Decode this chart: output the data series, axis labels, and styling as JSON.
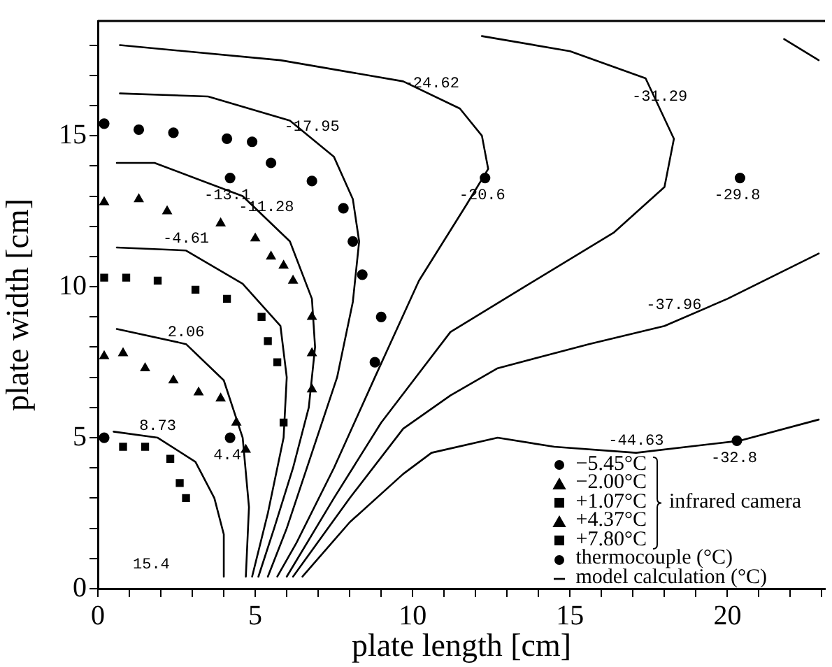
{
  "chart_data": {
    "type": "scatter",
    "xlabel": "plate length [cm]",
    "ylabel": "plate width [cm]",
    "xlim": [
      0,
      23.1
    ],
    "ylim": [
      0,
      18.8
    ],
    "xticks": [
      0,
      {
        "value": 1,
        "label": null
      },
      {
        "value": 2,
        "label": null
      },
      {
        "value": 3,
        "label": null
      },
      {
        "value": 4,
        "label": null
      },
      5,
      {
        "value": 6,
        "label": null
      },
      {
        "value": 7,
        "label": null
      },
      {
        "value": 8,
        "label": null
      },
      {
        "value": 9,
        "label": null
      },
      10,
      {
        "value": 11,
        "label": null
      },
      {
        "value": 12,
        "label": null
      },
      {
        "value": 13,
        "label": null
      },
      {
        "value": 14,
        "label": null
      },
      15,
      {
        "value": 16,
        "label": null
      },
      {
        "value": 17,
        "label": null
      },
      {
        "value": 18,
        "label": null
      },
      {
        "value": 19,
        "label": null
      },
      20,
      {
        "value": 21,
        "label": null
      },
      {
        "value": 22,
        "label": null
      },
      {
        "value": 23,
        "label": null
      }
    ],
    "yticks": [
      0,
      {
        "value": 1,
        "label": null
      },
      {
        "value": 2,
        "label": null
      },
      {
        "value": 3,
        "label": null
      },
      {
        "value": 4,
        "label": null
      },
      5,
      {
        "value": 6,
        "label": null
      },
      {
        "value": 7,
        "label": null
      },
      {
        "value": 8,
        "label": null
      },
      {
        "value": 9,
        "label": null
      },
      10,
      {
        "value": 11,
        "label": null
      },
      {
        "value": 12,
        "label": null
      },
      {
        "value": 13,
        "label": null
      },
      {
        "value": 14,
        "label": null
      },
      15,
      {
        "value": 16,
        "label": null
      },
      {
        "value": 17,
        "label": null
      },
      {
        "value": 18,
        "label": null
      }
    ],
    "grid": false,
    "legend": "bottom right",
    "series": [
      {
        "name": "−5.45°C",
        "marker": "circle",
        "color": "#000000",
        "x": [
          0.2,
          1.3,
          2.4,
          4.1,
          4.9,
          5.5,
          6.8,
          7.8,
          8.1,
          8.4,
          9.0,
          8.8
        ],
        "values": [
          15.4,
          15.2,
          15.1,
          14.9,
          14.8,
          14.1,
          13.5,
          12.6,
          11.5,
          10.4,
          9.0,
          7.5
        ]
      },
      {
        "name": "−2.00°C",
        "marker": "triangle",
        "color": "#000000",
        "x": [
          0.2,
          1.3,
          2.2,
          3.9,
          5.0,
          5.5,
          5.9,
          6.2,
          6.8,
          6.8,
          6.8
        ],
        "values": [
          12.8,
          12.9,
          12.5,
          12.1,
          11.6,
          11.0,
          10.7,
          10.2,
          9.0,
          7.8,
          6.6
        ]
      },
      {
        "name": "+1.07°C",
        "marker": "square",
        "color": "#000000",
        "x": [
          0.2,
          0.9,
          1.9,
          3.1,
          4.1,
          5.2,
          5.4,
          5.7,
          5.9
        ],
        "values": [
          10.3,
          10.3,
          10.2,
          9.9,
          9.6,
          9.0,
          8.2,
          7.5,
          5.5
        ]
      },
      {
        "name": "+4.37°C",
        "marker": "triangle",
        "color": "#000000",
        "x": [
          0.2,
          0.8,
          1.5,
          2.4,
          3.2,
          3.9,
          4.4,
          4.7
        ],
        "values": [
          7.7,
          7.8,
          7.3,
          6.9,
          6.5,
          6.3,
          5.5,
          4.6
        ]
      },
      {
        "name": "+7.80°C",
        "marker": "square",
        "color": "#000000",
        "x": [
          0.8,
          1.5,
          2.3,
          2.6,
          2.8
        ],
        "values": [
          4.7,
          4.7,
          4.3,
          3.5,
          3.0
        ]
      },
      {
        "name": "thermocouple (°C)",
        "marker": "circle",
        "color": "#000000",
        "x": [
          0.2,
          4.2,
          4.2,
          12.3,
          20.4,
          20.3
        ],
        "values": [
          5.0,
          5.0,
          13.6,
          13.6,
          13.6,
          4.9
        ]
      },
      {
        "name": "model calculation (°C)",
        "type": "line",
        "marker": "none",
        "color": "#000000",
        "x": [
          0.5,
          1.9,
          3.1,
          3.7,
          4.0,
          4.0
        ],
        "values": [
          5.2,
          5.0,
          4.2,
          3.0,
          1.8,
          0.4
        ]
      },
      {
        "type": "line",
        "marker": "none",
        "color": "#000000",
        "x": [
          0.6,
          2.8,
          4.0,
          4.6,
          4.8,
          4.7
        ],
        "values": [
          8.6,
          8.1,
          6.9,
          5.0,
          2.7,
          0.4
        ]
      },
      {
        "type": "line",
        "marker": "none",
        "color": "#000000",
        "x": [
          0.6,
          2.8,
          4.6,
          5.8,
          6.0,
          5.9,
          5.4,
          4.9
        ],
        "values": [
          11.3,
          11.2,
          10.1,
          8.7,
          7.0,
          5.0,
          2.5,
          0.4
        ]
      },
      {
        "type": "line",
        "marker": "none",
        "color": "#000000",
        "x": [
          0.6,
          1.8,
          4.6,
          6.1,
          6.8,
          6.9,
          6.7,
          6.2,
          5.6,
          5.1
        ],
        "values": [
          14.1,
          14.1,
          13.0,
          11.5,
          9.6,
          8.0,
          6.0,
          4.0,
          2.0,
          0.4
        ]
      },
      {
        "type": "line",
        "marker": "none",
        "color": "#000000",
        "x": [
          0.7,
          3.5,
          6.1,
          7.5,
          8.1,
          8.3,
          8.1,
          7.6,
          6.8,
          6.0,
          5.4
        ],
        "values": [
          16.4,
          16.3,
          15.5,
          14.3,
          12.9,
          11.5,
          9.5,
          7.0,
          4.5,
          2.0,
          0.4
        ]
      },
      {
        "type": "line",
        "marker": "none",
        "color": "#000000",
        "x": [
          0.7,
          5.8,
          9.7,
          11.5,
          12.2,
          12.4,
          11.7,
          10.2,
          8.8,
          7.5,
          6.3,
          5.7
        ],
        "values": [
          18.0,
          17.5,
          16.8,
          15.9,
          15.0,
          13.9,
          12.7,
          10.2,
          7.0,
          4.0,
          1.5,
          0.4
        ]
      },
      {
        "type": "line",
        "marker": "none",
        "color": "#000000",
        "x": [
          12.2,
          15.0,
          17.4,
          18.3,
          18.0,
          16.4,
          13.4,
          11.2,
          9.0,
          7.5,
          6.0
        ],
        "values": [
          18.3,
          17.8,
          16.9,
          14.9,
          13.3,
          11.8,
          9.9,
          8.5,
          5.5,
          3.0,
          0.4
        ]
      },
      {
        "type": "line",
        "marker": "none",
        "color": "#000000",
        "x": [
          22.9,
          20.0,
          18.0,
          15.6,
          12.7,
          11.2,
          9.7,
          8.0,
          6.2
        ],
        "values": [
          11.1,
          9.6,
          8.7,
          8.1,
          7.3,
          6.4,
          5.3,
          3.0,
          0.4
        ]
      },
      {
        "type": "line",
        "marker": "none",
        "color": "#000000",
        "x": [
          22.9,
          20.4,
          17.1,
          14.5,
          12.7,
          10.6,
          9.7,
          8.0,
          6.5
        ],
        "values": [
          5.6,
          4.9,
          4.5,
          4.7,
          5.0,
          4.5,
          3.8,
          2.2,
          0.4
        ]
      },
      {
        "type": "line",
        "marker": "none",
        "color": "#000000",
        "x": [
          21.8,
          22.9
        ],
        "values": [
          18.2,
          17.5
        ]
      }
    ],
    "annotations": [
      "infrared camera",
      {
        "text": "8.73",
        "x": 1.9,
        "y": 5.0
      },
      {
        "text": "2.06",
        "x": 2.8,
        "y": 8.1
      },
      {
        "text": "-4.61",
        "x": 2.8,
        "y": 11.2
      },
      {
        "text": "-11.28",
        "x": 5.35,
        "y": 12.25
      },
      {
        "text": "-17.95",
        "x": 6.8,
        "y": 14.9
      },
      {
        "text": "-24.62",
        "x": 10.6,
        "y": 16.35
      },
      {
        "text": "-31.29",
        "x": 17.85,
        "y": 15.9
      },
      {
        "text": "-37.96",
        "x": 18.3,
        "y": 9.0
      },
      {
        "text": "-44.63",
        "x": 17.1,
        "y": 4.5
      },
      {
        "text": "-13.1",
        "x": 4.2,
        "y": 13.6
      },
      {
        "text": "-20.6",
        "x": 12.3,
        "y": 13.6
      },
      {
        "text": "-29.8",
        "x": 20.4,
        "y": 13.6
      },
      {
        "text": "-32.8",
        "x": 20.3,
        "y": 4.9
      },
      {
        "text": "4.4",
        "x": 4.2,
        "y": 5.0
      },
      "15.4"
    ]
  }
}
